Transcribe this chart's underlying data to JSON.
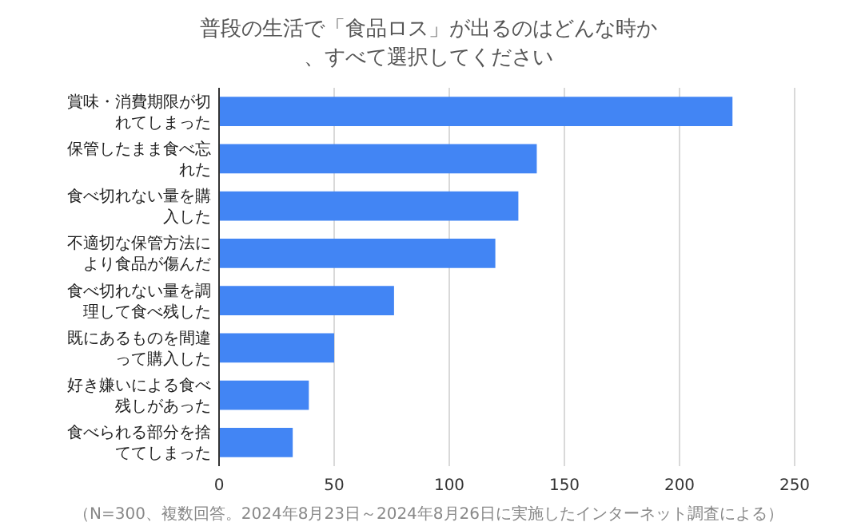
{
  "chart_data": {
    "type": "bar",
    "orientation": "horizontal",
    "title": "普段の生活で「食品ロス」が出るのはどんな時か、すべて選択してください",
    "categories": [
      "賞味・消費期限が切れてしまった",
      "保管したまま食べ忘れた",
      "食べ切れない量を購入した",
      "不適切な保管方法により食品が傷んだ",
      "食べ切れない量を調理して食べ残した",
      "既にあるものを間違って購入した",
      "好き嫌いによる食べ残しがあった",
      "食べられる部分を捨ててしまった"
    ],
    "values": [
      223,
      138,
      130,
      120,
      76,
      50,
      39,
      32
    ],
    "color": "#4285f4",
    "xlim": [
      0,
      250
    ],
    "xticks": [
      0,
      50,
      100,
      150,
      200,
      250
    ],
    "grid": "x",
    "annotations": [
      "（N=300、複数回答。2024年8月23日～2024年8月26日に実施したインターネット調査による）"
    ]
  }
}
